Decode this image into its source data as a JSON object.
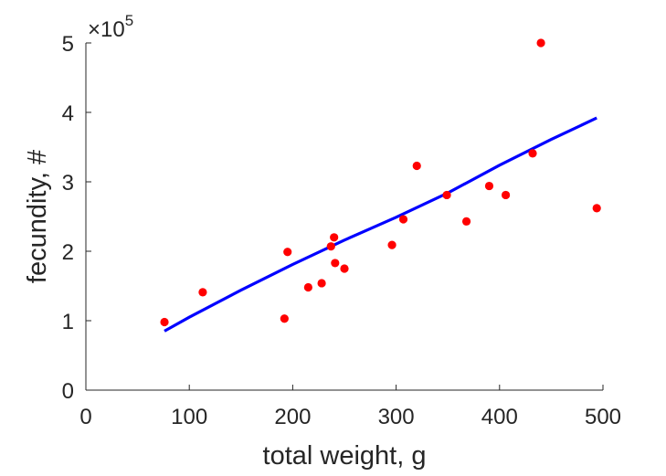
{
  "chart_data": {
    "type": "scatter",
    "title": "",
    "xlabel": "total weight, g",
    "ylabel": "fecundity, #",
    "xlim": [
      0,
      500
    ],
    "ylim": [
      0,
      5
    ],
    "y_scale_multiplier": "×10",
    "y_scale_exponent": "5",
    "grid": false,
    "legend": "none",
    "x_ticks": [
      "0",
      "100",
      "200",
      "300",
      "400",
      "500"
    ],
    "y_ticks": [
      "0",
      "1",
      "2",
      "3",
      "4",
      "5"
    ],
    "series": [
      {
        "kind": "points",
        "color": "#ff0000",
        "points": [
          {
            "x": 76,
            "y": 0.98
          },
          {
            "x": 113,
            "y": 1.41
          },
          {
            "x": 192,
            "y": 1.03
          },
          {
            "x": 195,
            "y": 1.99
          },
          {
            "x": 215,
            "y": 1.48
          },
          {
            "x": 228,
            "y": 1.54
          },
          {
            "x": 237,
            "y": 2.07
          },
          {
            "x": 240,
            "y": 2.2
          },
          {
            "x": 241,
            "y": 1.83
          },
          {
            "x": 250,
            "y": 1.75
          },
          {
            "x": 296,
            "y": 2.09
          },
          {
            "x": 307,
            "y": 2.46
          },
          {
            "x": 320,
            "y": 3.23
          },
          {
            "x": 349,
            "y": 2.81
          },
          {
            "x": 368,
            "y": 2.43
          },
          {
            "x": 390,
            "y": 2.94
          },
          {
            "x": 406,
            "y": 2.81
          },
          {
            "x": 432,
            "y": 3.41
          },
          {
            "x": 440,
            "y": 5.0
          },
          {
            "x": 494,
            "y": 2.62
          }
        ]
      },
      {
        "kind": "fit-line",
        "color": "#0000ff",
        "points": [
          {
            "x": 76,
            "y": 0.85
          },
          {
            "x": 100,
            "y": 1.05
          },
          {
            "x": 150,
            "y": 1.44
          },
          {
            "x": 200,
            "y": 1.81
          },
          {
            "x": 250,
            "y": 2.16
          },
          {
            "x": 300,
            "y": 2.49
          },
          {
            "x": 350,
            "y": 2.84
          },
          {
            "x": 400,
            "y": 3.24
          },
          {
            "x": 450,
            "y": 3.61
          },
          {
            "x": 494,
            "y": 3.92
          }
        ]
      }
    ]
  }
}
